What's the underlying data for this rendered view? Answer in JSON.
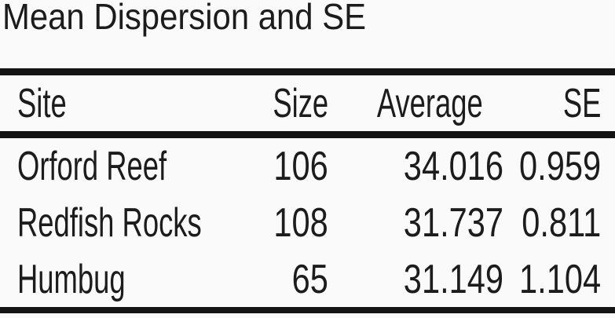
{
  "chart_data": {
    "type": "table",
    "title": "Mean Dispersion and SE",
    "columns": [
      "Site",
      "Size",
      "Average",
      "SE"
    ],
    "column_alignments": [
      "left",
      "right",
      "right",
      "right"
    ],
    "rows": [
      [
        "Orford Reef",
        "106",
        "34.016",
        "0.959"
      ],
      [
        "Redfish Rocks",
        "108",
        "31.737",
        "0.811"
      ],
      [
        "Humbug",
        "65",
        "31.149",
        "1.104"
      ]
    ]
  },
  "colors": {
    "text": "#1c1c1c",
    "rule": "#141414",
    "background": "#fafafa"
  }
}
